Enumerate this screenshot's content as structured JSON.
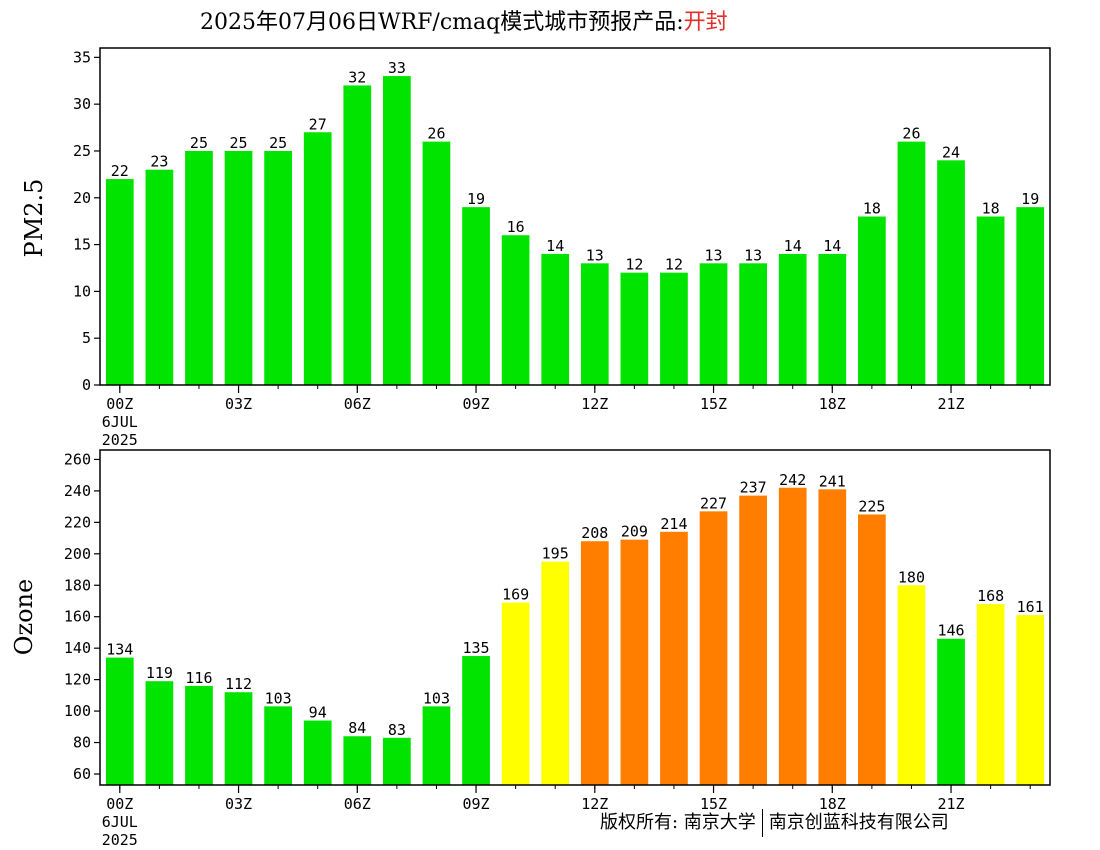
{
  "title": {
    "main": "2025年07月06日WRF/cmaq模式城市预报产品:",
    "city": "开封"
  },
  "copyright": {
    "left": "版权所有: 南京大学",
    "right": "南京创蓝科技有限公司"
  },
  "colors": {
    "green": "#00e400",
    "yellow": "#ffff00",
    "orange": "#ff7e00"
  },
  "chart_data": [
    {
      "type": "bar",
      "ylabel": "PM2.5",
      "ylim": [
        0,
        36
      ],
      "yticks": [
        0,
        5,
        10,
        15,
        20,
        25,
        30,
        35
      ],
      "x": [
        0,
        1,
        2,
        3,
        4,
        5,
        6,
        7,
        8,
        9,
        10,
        11,
        12,
        13,
        14,
        15,
        16,
        17,
        18,
        19,
        20,
        21,
        22,
        23
      ],
      "values": [
        22,
        23,
        25,
        25,
        25,
        27,
        32,
        33,
        26,
        19,
        16,
        14,
        13,
        12,
        12,
        13,
        13,
        14,
        14,
        18,
        26,
        24,
        18,
        19
      ],
      "value_labels": [
        "22",
        "23",
        "25",
        "25",
        "25",
        "27",
        "32",
        "33",
        "26",
        "19",
        "16",
        "14",
        "13",
        "12",
        "12",
        "13",
        "13",
        "14",
        "14",
        "18",
        "26",
        "24",
        "18",
        "19"
      ],
      "bar_colors": [
        "green",
        "green",
        "green",
        "green",
        "green",
        "green",
        "green",
        "green",
        "green",
        "green",
        "green",
        "green",
        "green",
        "green",
        "green",
        "green",
        "green",
        "green",
        "green",
        "green",
        "green",
        "green",
        "green",
        "green"
      ],
      "xtick_labels": [
        {
          "x": 0,
          "label": "00Z"
        },
        {
          "x": 3,
          "label": "03Z"
        },
        {
          "x": 6,
          "label": "06Z"
        },
        {
          "x": 9,
          "label": "09Z"
        },
        {
          "x": 12,
          "label": "12Z"
        },
        {
          "x": 15,
          "label": "15Z"
        },
        {
          "x": 18,
          "label": "18Z"
        },
        {
          "x": 21,
          "label": "21Z"
        }
      ],
      "date_label": [
        "6JUL",
        "2025"
      ],
      "grid": false
    },
    {
      "type": "bar",
      "ylabel": "Ozone",
      "ylim": [
        53,
        266
      ],
      "yticks": [
        60,
        80,
        100,
        120,
        140,
        160,
        180,
        200,
        220,
        240,
        260
      ],
      "x": [
        0,
        1,
        2,
        3,
        4,
        5,
        6,
        7,
        8,
        9,
        10,
        11,
        12,
        13,
        14,
        15,
        16,
        17,
        18,
        19,
        20,
        21,
        22,
        23
      ],
      "values": [
        134,
        119,
        116,
        112,
        103,
        94,
        84,
        83,
        103,
        135,
        169,
        195,
        208,
        209,
        214,
        227,
        237,
        242,
        241,
        225,
        180,
        146,
        168,
        161
      ],
      "value_labels": [
        "134",
        "119",
        "116",
        "112",
        "103",
        "94",
        "84",
        "83",
        "103",
        "135",
        "169",
        "195",
        "208",
        "209",
        "214",
        "227",
        "237",
        "242",
        "241",
        "225",
        "180",
        "146",
        "168",
        "161"
      ],
      "bar_colors": [
        "green",
        "green",
        "green",
        "green",
        "green",
        "green",
        "green",
        "green",
        "green",
        "green",
        "yellow",
        "yellow",
        "orange",
        "orange",
        "orange",
        "orange",
        "orange",
        "orange",
        "orange",
        "orange",
        "yellow",
        "green",
        "yellow",
        "yellow"
      ],
      "xtick_labels": [
        {
          "x": 0,
          "label": "00Z"
        },
        {
          "x": 3,
          "label": "03Z"
        },
        {
          "x": 6,
          "label": "06Z"
        },
        {
          "x": 9,
          "label": "09Z"
        },
        {
          "x": 12,
          "label": "12Z"
        },
        {
          "x": 15,
          "label": "15Z"
        },
        {
          "x": 18,
          "label": "18Z"
        },
        {
          "x": 21,
          "label": "21Z"
        }
      ],
      "date_label": [
        "6JUL",
        "2025"
      ],
      "grid": false
    }
  ]
}
